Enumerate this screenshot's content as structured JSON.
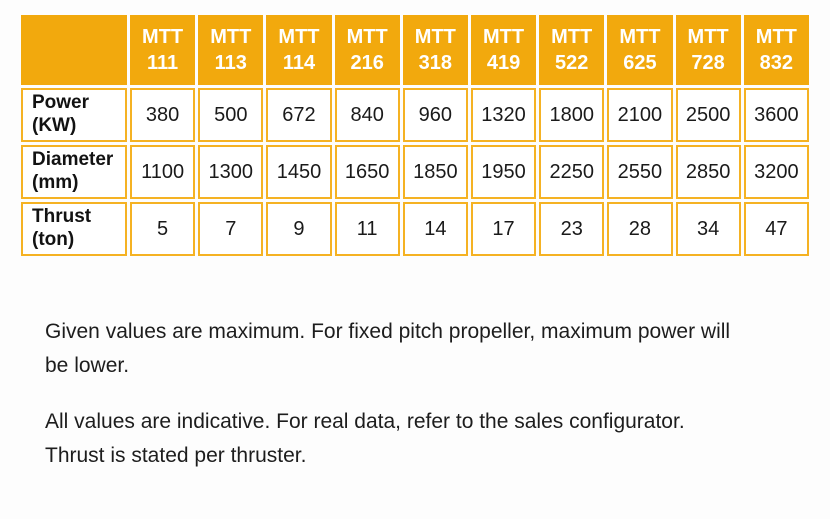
{
  "table": {
    "corner": "",
    "models": [
      "MTT\n111",
      "MTT\n113",
      "MTT\n114",
      "MTT\n216",
      "MTT\n318",
      "MTT\n419",
      "MTT\n522",
      "MTT\n625",
      "MTT\n728",
      "MTT\n832"
    ],
    "rows": [
      {
        "label": "Power\n(KW)",
        "values": [
          "380",
          "500",
          "672",
          "840",
          "960",
          "1320",
          "1800",
          "2100",
          "2500",
          "3600"
        ]
      },
      {
        "label": "Diameter\n(mm)",
        "values": [
          "1100",
          "1300",
          "1450",
          "1650",
          "1850",
          "1950",
          "2250",
          "2550",
          "2850",
          "3200"
        ]
      },
      {
        "label": "Thrust\n(ton)",
        "values": [
          "5",
          "7",
          "9",
          "11",
          "14",
          "17",
          "23",
          "28",
          "34",
          "47"
        ]
      }
    ]
  },
  "notes": [
    "Given values are maximum. For fixed pitch propeller, maximum power will\nbe lower.",
    "All values are indicative. For real data, refer to the sales configurator.\nThrust is stated per thruster."
  ],
  "colors": {
    "header_fill": "#F2A90D",
    "cell_border": "#F5B223",
    "header_text": "#FFFFFF",
    "body_text": "#1A1A1A"
  }
}
